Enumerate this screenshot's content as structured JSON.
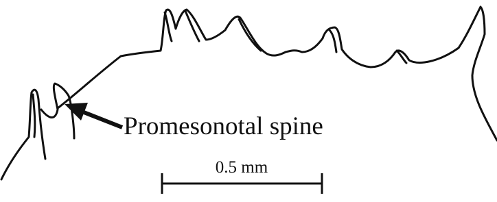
{
  "labels": {
    "structure": "Promesonotal spine",
    "scale_bar": "0.5 mm"
  }
}
